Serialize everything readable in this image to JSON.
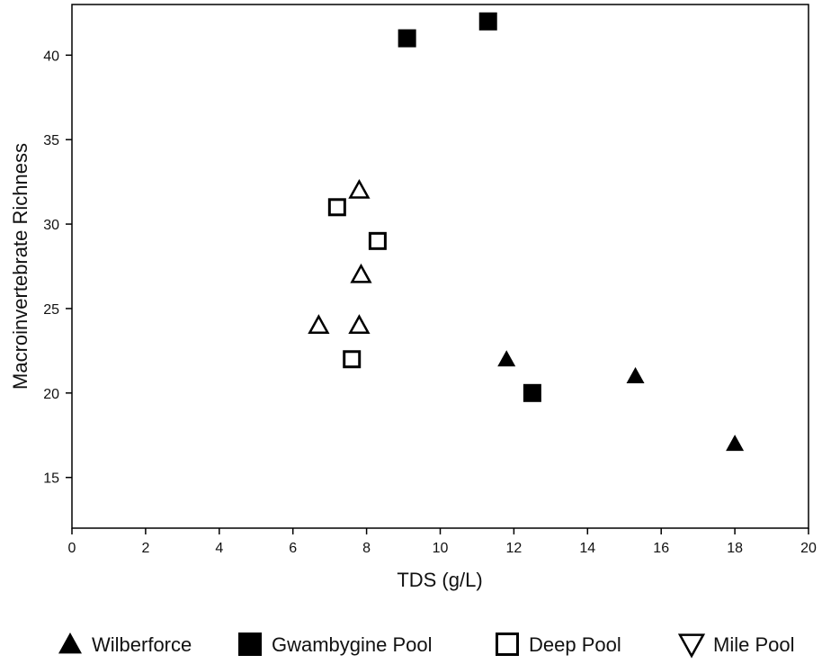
{
  "chart_data": {
    "type": "scatter",
    "xlabel": "TDS (g/L)",
    "ylabel": "Macroinvertebrate Richness",
    "xlim": [
      0,
      20
    ],
    "ylim": [
      12,
      43
    ],
    "x_ticks": [
      0,
      2,
      4,
      6,
      8,
      10,
      12,
      14,
      16,
      18,
      20
    ],
    "y_ticks": [
      15,
      20,
      25,
      30,
      35,
      40
    ],
    "grid": false,
    "legend_position": "bottom",
    "series": [
      {
        "name": "Wilberforce",
        "marker": "triangle-up-filled",
        "color": "#000000",
        "points": [
          {
            "x": 11.8,
            "y": 22
          },
          {
            "x": 15.3,
            "y": 21
          },
          {
            "x": 18.0,
            "y": 17
          }
        ]
      },
      {
        "name": "Gwambygine Pool",
        "marker": "square-filled",
        "color": "#000000",
        "points": [
          {
            "x": 9.1,
            "y": 41
          },
          {
            "x": 11.3,
            "y": 42
          },
          {
            "x": 12.5,
            "y": 20
          }
        ]
      },
      {
        "name": "Deep Pool",
        "marker": "square-open",
        "color": "#000000",
        "points": [
          {
            "x": 7.2,
            "y": 31
          },
          {
            "x": 8.3,
            "y": 29
          },
          {
            "x": 7.6,
            "y": 22
          }
        ]
      },
      {
        "name": "Mile Pool",
        "marker": "triangle-down-open",
        "color": "#000000",
        "points": [
          {
            "x": 7.8,
            "y": 32
          },
          {
            "x": 7.85,
            "y": 27
          },
          {
            "x": 6.7,
            "y": 24
          },
          {
            "x": 7.8,
            "y": 24
          }
        ]
      }
    ]
  }
}
